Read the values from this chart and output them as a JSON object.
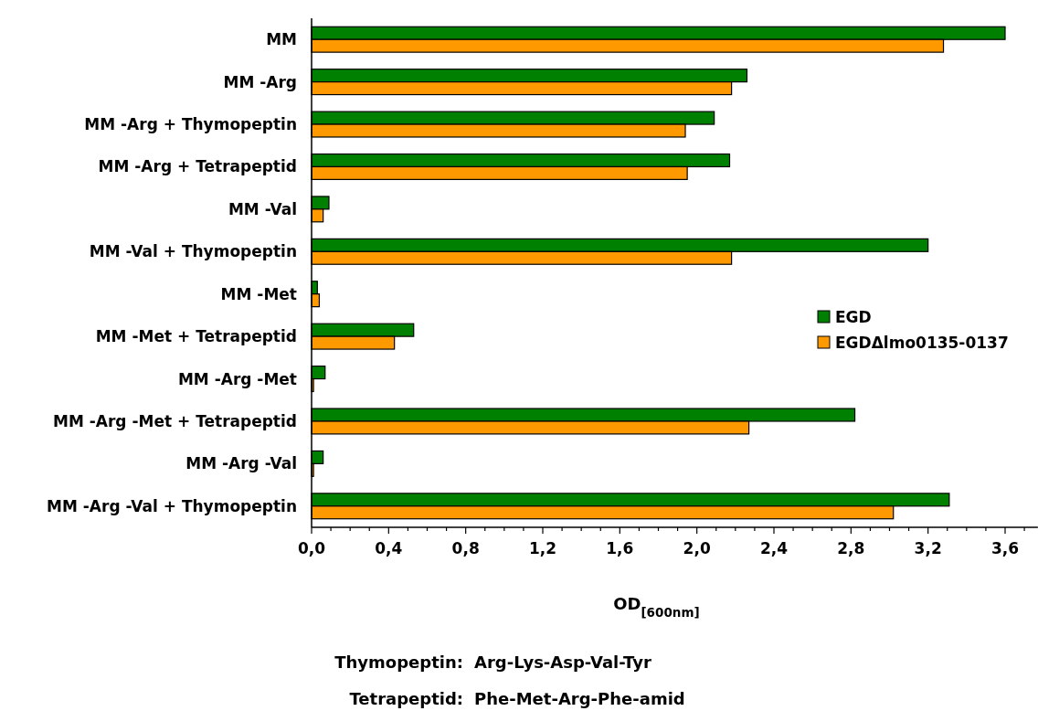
{
  "chart_data": {
    "type": "bar",
    "orientation": "horizontal",
    "categories": [
      "MM",
      "MM -Arg",
      "MM -Arg + Thymopeptin",
      "MM -Arg + Tetrapeptid",
      "MM -Val",
      "MM -Val + Thymopeptin",
      "MM -Met",
      "MM -Met + Tetrapeptid",
      "MM -Arg -Met",
      "MM -Arg -Met + Tetrapeptid",
      "MM -Arg -Val",
      "MM -Arg -Val + Thymopeptin"
    ],
    "series": [
      {
        "name": "EGD",
        "color": "#008000",
        "values": [
          3.6,
          2.26,
          2.09,
          2.17,
          0.09,
          3.2,
          0.03,
          0.53,
          0.07,
          2.82,
          0.06,
          3.31
        ]
      },
      {
        "name": "EGDΔlmo0135-0137",
        "color": "#ff9900",
        "values": [
          3.28,
          2.18,
          1.94,
          1.95,
          0.06,
          2.18,
          0.04,
          0.43,
          0.01,
          2.27,
          0.01,
          3.02
        ]
      }
    ],
    "xlim": [
      0,
      3.77
    ],
    "xticks": [
      {
        "value": 0,
        "label": "0,0"
      },
      {
        "value": 0.1,
        "label": null
      },
      {
        "value": 0.2,
        "label": null
      },
      {
        "value": 0.3,
        "label": null
      },
      {
        "value": 0.4,
        "label": "0,4"
      },
      {
        "value": 0.5,
        "label": null
      },
      {
        "value": 0.6,
        "label": null
      },
      {
        "value": 0.7,
        "label": null
      },
      {
        "value": 0.8,
        "label": "0,8"
      },
      {
        "value": 0.9,
        "label": null
      },
      {
        "value": 1.0,
        "label": null
      },
      {
        "value": 1.1,
        "label": null
      },
      {
        "value": 1.2,
        "label": "1,2"
      },
      {
        "value": 1.3,
        "label": null
      },
      {
        "value": 1.4,
        "label": null
      },
      {
        "value": 1.5,
        "label": null
      },
      {
        "value": 1.6,
        "label": "1,6"
      },
      {
        "value": 1.7,
        "label": null
      },
      {
        "value": 1.8,
        "label": null
      },
      {
        "value": 1.9,
        "label": null
      },
      {
        "value": 2.0,
        "label": "2,0"
      },
      {
        "value": 2.1,
        "label": null
      },
      {
        "value": 2.2,
        "label": null
      },
      {
        "value": 2.3,
        "label": null
      },
      {
        "value": 2.4,
        "label": "2,4"
      },
      {
        "value": 2.5,
        "label": null
      },
      {
        "value": 2.6,
        "label": null
      },
      {
        "value": 2.7,
        "label": null
      },
      {
        "value": 2.8,
        "label": "2,8"
      },
      {
        "value": 2.9,
        "label": null
      },
      {
        "value": 3.0,
        "label": null
      },
      {
        "value": 3.1,
        "label": null
      },
      {
        "value": 3.2,
        "label": "3,2"
      },
      {
        "value": 3.3,
        "label": null
      },
      {
        "value": 3.4,
        "label": null
      },
      {
        "value": 3.5,
        "label": null
      },
      {
        "value": 3.6,
        "label": "3,6"
      },
      {
        "value": 3.7,
        "label": null
      }
    ],
    "xlabel": "OD$_{[600nm]}$",
    "legend": "right",
    "grid": false,
    "annotations": [
      "Thymopeptin: Arg-Lys-Asp-Val-Tyr",
      "Tetrapeptid: Phe-Met-Arg-Phe-amid"
    ]
  }
}
